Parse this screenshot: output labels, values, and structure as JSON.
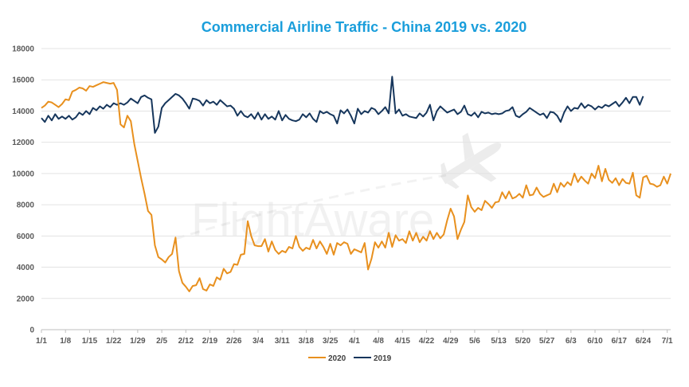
{
  "chart_data": {
    "type": "line",
    "title": "Commercial Airline Traffic - China 2019 vs. 2020",
    "xlabel": "",
    "ylabel": "",
    "ylim": [
      0,
      18000
    ],
    "yticks": [
      0,
      2000,
      4000,
      6000,
      8000,
      10000,
      12000,
      14000,
      16000,
      18000
    ],
    "xticks": [
      "1/1",
      "1/8",
      "1/15",
      "1/22",
      "1/29",
      "2/5",
      "2/12",
      "2/19",
      "2/26",
      "3/4",
      "3/11",
      "3/18",
      "3/25",
      "4/1",
      "4/8",
      "4/15",
      "4/22",
      "4/29",
      "5/6",
      "5/13",
      "5/20",
      "5/27",
      "6/3",
      "6/10",
      "6/17",
      "6/24",
      "7/1"
    ],
    "grid": "horizontal",
    "legend_position": "bottom",
    "watermark": "FlightAware",
    "x_start": "1/1",
    "x_end": "7/6",
    "series": [
      {
        "name": "2020",
        "color": "#e8901e",
        "values": [
          14200,
          14350,
          14600,
          14550,
          14400,
          14250,
          14450,
          14750,
          14700,
          15250,
          15350,
          15500,
          15450,
          15300,
          15600,
          15550,
          15650,
          15750,
          15850,
          15800,
          15750,
          15800,
          15350,
          13150,
          12950,
          13700,
          13350,
          11900,
          10800,
          9700,
          8700,
          7600,
          7350,
          5400,
          4650,
          4500,
          4300,
          4650,
          4850,
          5900,
          3750,
          3000,
          2750,
          2450,
          2800,
          2850,
          3300,
          2600,
          2500,
          2900,
          2800,
          3350,
          3200,
          3900,
          3600,
          3700,
          4200,
          4150,
          4800,
          4850,
          6950,
          6000,
          5400,
          5350,
          5350,
          5800,
          5000,
          5650,
          5100,
          4850,
          5050,
          4950,
          5300,
          5200,
          6000,
          5300,
          5050,
          5250,
          5150,
          5750,
          5200,
          5650,
          5300,
          4850,
          5500,
          4800,
          5550,
          5400,
          5600,
          5500,
          4850,
          5150,
          5050,
          4950,
          5550,
          3850,
          4550,
          5600,
          5250,
          5650,
          5250,
          6200,
          5300,
          6050,
          5700,
          5800,
          5550,
          6300,
          5700,
          6200,
          5600,
          5950,
          5700,
          6300,
          5800,
          6200,
          5850,
          6100,
          7000,
          7750,
          7250,
          5800,
          6400,
          6900,
          8600,
          7850,
          7550,
          7800,
          7650,
          8250,
          8050,
          7800,
          8150,
          8200,
          8800,
          8400,
          8850,
          8400,
          8500,
          8700,
          8450,
          9250,
          8600,
          8650,
          9100,
          8700,
          8500,
          8600,
          8700,
          9350,
          8800,
          9400,
          9150,
          9450,
          9250,
          10000,
          9450,
          9800,
          9550,
          9350,
          10000,
          9700,
          10500,
          9500,
          10300,
          9600,
          9400,
          9700,
          9250,
          9650,
          9400,
          9350,
          10050,
          8600,
          8450,
          9750,
          9850,
          9350,
          9300,
          9150,
          9250,
          9800,
          9350,
          10000
        ]
      },
      {
        "name": "2019",
        "color": "#16365c",
        "values": [
          13550,
          13300,
          13700,
          13400,
          13800,
          13500,
          13650,
          13500,
          13700,
          13450,
          13600,
          13900,
          13750,
          14000,
          13800,
          14200,
          14050,
          14300,
          14150,
          14400,
          14250,
          14500,
          14400,
          14500,
          14400,
          14550,
          14800,
          14650,
          14500,
          14900,
          15000,
          14850,
          14750,
          12600,
          13000,
          14200,
          14500,
          14700,
          14900,
          15100,
          15000,
          14800,
          14500,
          14150,
          14800,
          14750,
          14650,
          14350,
          14700,
          14500,
          14600,
          14400,
          14700,
          14500,
          14300,
          14350,
          14150,
          13700,
          14000,
          13700,
          13600,
          13800,
          13500,
          13900,
          13450,
          13800,
          13500,
          13650,
          13450,
          14000,
          13400,
          13750,
          13500,
          13400,
          13350,
          13450,
          13800,
          13600,
          13850,
          13500,
          13300,
          14000,
          13850,
          13950,
          13800,
          13700,
          13200,
          14050,
          13850,
          14100,
          13700,
          13200,
          14150,
          13800,
          14000,
          13900,
          14200,
          14100,
          13800,
          14000,
          14250,
          13850,
          16200,
          13850,
          14100,
          13700,
          13800,
          13650,
          13600,
          13550,
          13850,
          13650,
          13900,
          14400,
          13400,
          14000,
          14300,
          14100,
          13900,
          14000,
          14100,
          13800,
          13950,
          14350,
          13800,
          13700,
          13900,
          13600,
          13950,
          13850,
          13900,
          13800,
          13850,
          13800,
          13850,
          14000,
          14050,
          14250,
          13700,
          13600,
          13800,
          13950,
          14200,
          14050,
          13900,
          13750,
          13850,
          13550,
          13950,
          13900,
          13700,
          13300,
          13900,
          14300,
          14000,
          14200,
          14150,
          14500,
          14200,
          14400,
          14300,
          14100,
          14300,
          14200,
          14400,
          14300,
          14450,
          14600,
          14300,
          14550,
          14850,
          14500,
          14900,
          14900,
          14400,
          14950
        ]
      }
    ]
  }
}
